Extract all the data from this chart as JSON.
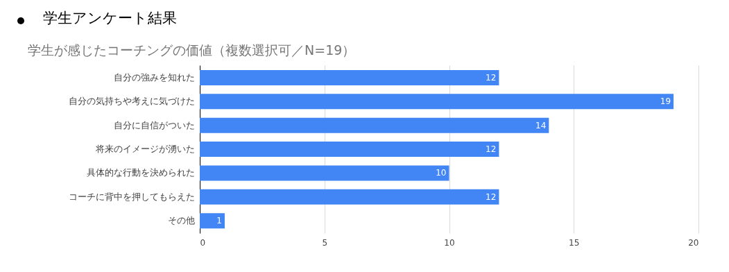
{
  "chart_data": {
    "type": "bar",
    "orientation": "horizontal",
    "title": "学生アンケート結果",
    "subtitle": "学生が感じたコーチングの価値（複数選択可／N=19）",
    "categories": [
      "自分の強みを知れた",
      "自分の気持ちや考えに気づけた",
      "自分に自信がついた",
      "将来のイメージが湧いた",
      "具体的な行動を決められた",
      "コーチに背中を押してもらえた",
      "その他"
    ],
    "values": [
      12,
      19,
      14,
      12,
      10,
      12,
      1
    ],
    "color": "#4285f4",
    "xlim": [
      0,
      20
    ],
    "xticks": [
      0,
      5,
      10,
      15,
      20
    ],
    "grid": "x",
    "data_labels": true
  }
}
